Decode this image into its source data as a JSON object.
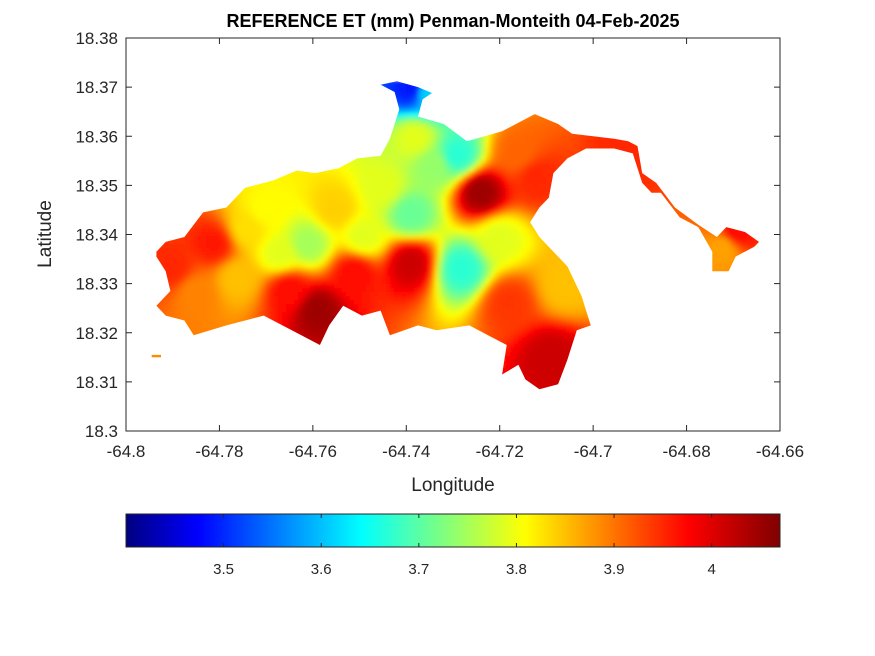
{
  "chart_data": {
    "type": "heatmap",
    "title": "REFERENCE ET (mm) Penman-Monteith 04-Feb-2025",
    "xlabel": "Longitude",
    "ylabel": "Latitude",
    "xlim": [
      -64.8,
      -64.66
    ],
    "ylim": [
      18.3,
      18.38
    ],
    "x_ticks": [
      -64.8,
      -64.78,
      -64.76,
      -64.74,
      -64.72,
      -64.7,
      -64.68,
      -64.66
    ],
    "x_tick_labels": [
      "-64.8",
      "-64.78",
      "-64.76",
      "-64.74",
      "-64.72",
      "-64.7",
      "-64.68",
      "-64.66"
    ],
    "y_ticks": [
      18.3,
      18.31,
      18.32,
      18.33,
      18.34,
      18.35,
      18.36,
      18.37,
      18.38
    ],
    "y_tick_labels": [
      "18.3",
      "18.31",
      "18.32",
      "18.33",
      "18.34",
      "18.35",
      "18.36",
      "18.37",
      "18.38"
    ],
    "grid": false,
    "colormap": "jet",
    "colorbar": {
      "orientation": "horizontal",
      "placement": "below",
      "range": [
        3.4,
        4.07
      ],
      "ticks": [
        3.5,
        3.6,
        3.7,
        3.8,
        3.9,
        4.0
      ],
      "tick_labels": [
        "3.5",
        "3.6",
        "3.7",
        "3.8",
        "3.9",
        "4"
      ]
    },
    "outline": [
      [
        -64.7935,
        18.3365
      ],
      [
        -64.7915,
        18.3385
      ],
      [
        -64.7875,
        18.3395
      ],
      [
        -64.7835,
        18.3445
      ],
      [
        -64.7785,
        18.3455
      ],
      [
        -64.7745,
        18.3495
      ],
      [
        -64.7685,
        18.351
      ],
      [
        -64.7635,
        18.353
      ],
      [
        -64.7595,
        18.3525
      ],
      [
        -64.7545,
        18.3535
      ],
      [
        -64.7505,
        18.3555
      ],
      [
        -64.7455,
        18.356
      ],
      [
        -64.7435,
        18.3595
      ],
      [
        -64.7425,
        18.3625
      ],
      [
        -64.7415,
        18.3655
      ],
      [
        -64.7425,
        18.369
      ],
      [
        -64.7455,
        18.3705
      ],
      [
        -64.742,
        18.3712
      ],
      [
        -64.7375,
        18.37
      ],
      [
        -64.7345,
        18.3688
      ],
      [
        -64.7365,
        18.3675
      ],
      [
        -64.7375,
        18.364
      ],
      [
        -64.732,
        18.3625
      ],
      [
        -64.727,
        18.359
      ],
      [
        -64.7195,
        18.361
      ],
      [
        -64.7125,
        18.3645
      ],
      [
        -64.7075,
        18.3625
      ],
      [
        -64.7045,
        18.3605
      ],
      [
        -64.6955,
        18.3595
      ],
      [
        -64.6925,
        18.359
      ],
      [
        -64.6905,
        18.358
      ],
      [
        -64.6895,
        18.3525
      ],
      [
        -64.6865,
        18.3505
      ],
      [
        -64.6825,
        18.3455
      ],
      [
        -64.6775,
        18.342
      ],
      [
        -64.6735,
        18.3395
      ],
      [
        -64.6715,
        18.3415
      ],
      [
        -64.6675,
        18.3405
      ],
      [
        -64.6645,
        18.3385
      ],
      [
        -64.6655,
        18.3375
      ],
      [
        -64.6695,
        18.3355
      ],
      [
        -64.671,
        18.3325
      ],
      [
        -64.6745,
        18.3325
      ],
      [
        -64.6745,
        18.3365
      ],
      [
        -64.6775,
        18.3415
      ],
      [
        -64.6815,
        18.3435
      ],
      [
        -64.6855,
        18.3485
      ],
      [
        -64.6875,
        18.3485
      ],
      [
        -64.6895,
        18.3505
      ],
      [
        -64.6915,
        18.3565
      ],
      [
        -64.6955,
        18.3575
      ],
      [
        -64.7015,
        18.3575
      ],
      [
        -64.7055,
        18.3555
      ],
      [
        -64.7085,
        18.3525
      ],
      [
        -64.7095,
        18.3475
      ],
      [
        -64.7115,
        18.3455
      ],
      [
        -64.7135,
        18.3425
      ],
      [
        -64.7115,
        18.3395
      ],
      [
        -64.7085,
        18.3365
      ],
      [
        -64.7055,
        18.3335
      ],
      [
        -64.7025,
        18.3275
      ],
      [
        -64.7015,
        18.3245
      ],
      [
        -64.7005,
        18.3215
      ],
      [
        -64.7035,
        18.3205
      ],
      [
        -64.7055,
        18.3145
      ],
      [
        -64.7075,
        18.3095
      ],
      [
        -64.7115,
        18.3085
      ],
      [
        -64.7145,
        18.3105
      ],
      [
        -64.716,
        18.3135
      ],
      [
        -64.7195,
        18.3115
      ],
      [
        -64.7185,
        18.3175
      ],
      [
        -64.7225,
        18.3195
      ],
      [
        -64.7265,
        18.3215
      ],
      [
        -64.7335,
        18.3205
      ],
      [
        -64.7375,
        18.3215
      ],
      [
        -64.7435,
        18.3195
      ],
      [
        -64.7455,
        18.3245
      ],
      [
        -64.7495,
        18.3235
      ],
      [
        -64.7535,
        18.3255
      ],
      [
        -64.7565,
        18.3215
      ],
      [
        -64.7585,
        18.3175
      ],
      [
        -64.7645,
        18.3205
      ],
      [
        -64.7685,
        18.3225
      ],
      [
        -64.7705,
        18.3235
      ],
      [
        -64.7745,
        18.3225
      ],
      [
        -64.7785,
        18.3215
      ],
      [
        -64.7855,
        18.3195
      ],
      [
        -64.7875,
        18.3225
      ],
      [
        -64.7915,
        18.3235
      ],
      [
        -64.7935,
        18.3255
      ],
      [
        -64.7905,
        18.3285
      ],
      [
        -64.7915,
        18.3325
      ],
      [
        -64.7935,
        18.3355
      ]
    ],
    "islet": [
      [
        -64.7945,
        18.3155
      ],
      [
        -64.7925,
        18.3155
      ],
      [
        -64.7925,
        18.315
      ],
      [
        -64.7945,
        18.315
      ]
    ],
    "cells": [
      {
        "lon": -64.7905,
        "lat": 18.3335,
        "et": 3.96
      },
      {
        "lon": -64.7855,
        "lat": 18.3285,
        "et": 3.9
      },
      {
        "lon": -64.7815,
        "lat": 18.3385,
        "et": 3.97
      },
      {
        "lon": -64.7765,
        "lat": 18.3315,
        "et": 3.86
      },
      {
        "lon": -64.7745,
        "lat": 18.3415,
        "et": 3.84
      },
      {
        "lon": -64.7705,
        "lat": 18.3455,
        "et": 3.82
      },
      {
        "lon": -64.7675,
        "lat": 18.3365,
        "et": 3.8
      },
      {
        "lon": -64.7655,
        "lat": 18.329,
        "et": 3.98
      },
      {
        "lon": -64.7595,
        "lat": 18.325,
        "et": 4.05
      },
      {
        "lon": -64.7615,
        "lat": 18.3385,
        "et": 3.76
      },
      {
        "lon": -64.7555,
        "lat": 18.3455,
        "et": 3.85
      },
      {
        "lon": -64.7515,
        "lat": 18.3325,
        "et": 3.98
      },
      {
        "lon": -64.7495,
        "lat": 18.34,
        "et": 3.8
      },
      {
        "lon": -64.7455,
        "lat": 18.35,
        "et": 3.8
      },
      {
        "lon": -64.7395,
        "lat": 18.3345,
        "et": 4.02
      },
      {
        "lon": -64.7395,
        "lat": 18.3445,
        "et": 3.72
      },
      {
        "lon": -64.7385,
        "lat": 18.36,
        "et": 3.8
      },
      {
        "lon": -64.7395,
        "lat": 18.37,
        "et": 3.5
      },
      {
        "lon": -64.7355,
        "lat": 18.3688,
        "et": 3.62
      },
      {
        "lon": -64.7345,
        "lat": 18.3545,
        "et": 3.75
      },
      {
        "lon": -64.7295,
        "lat": 18.3565,
        "et": 3.68
      },
      {
        "lon": -64.7285,
        "lat": 18.3335,
        "et": 3.68
      },
      {
        "lon": -64.7245,
        "lat": 18.349,
        "et": 4.05
      },
      {
        "lon": -64.7205,
        "lat": 18.3395,
        "et": 3.8
      },
      {
        "lon": -64.7185,
        "lat": 18.3265,
        "et": 3.95
      },
      {
        "lon": -64.7165,
        "lat": 18.357,
        "et": 3.92
      },
      {
        "lon": -64.7125,
        "lat": 18.352,
        "et": 3.96
      },
      {
        "lon": -64.7095,
        "lat": 18.3155,
        "et": 4.02
      },
      {
        "lon": -64.7065,
        "lat": 18.33,
        "et": 3.86
      },
      {
        "lon": -64.6935,
        "lat": 18.3575,
        "et": 3.96
      },
      {
        "lon": -64.6725,
        "lat": 18.3375,
        "et": 3.88
      },
      {
        "lon": -64.6695,
        "lat": 18.341,
        "et": 3.98
      }
    ]
  }
}
